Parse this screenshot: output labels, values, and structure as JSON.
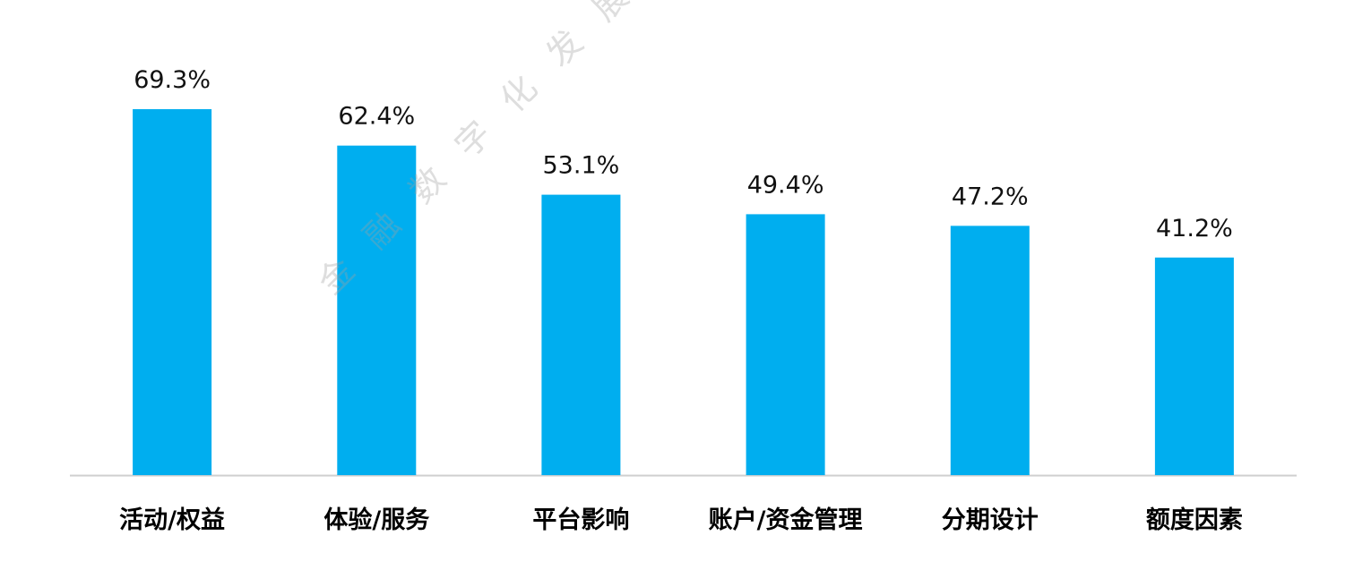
{
  "chart_data": {
    "type": "bar",
    "categories": [
      "活动/权益",
      "体验/服务",
      "平台影响",
      "账户/资金管理",
      "分期设计",
      "额度因素"
    ],
    "values": [
      69.3,
      62.4,
      53.1,
      49.4,
      47.2,
      41.2
    ],
    "value_labels": [
      "69.3%",
      "62.4%",
      "53.1%",
      "49.4%",
      "47.2%",
      "41.2%"
    ],
    "ylim": [
      0,
      69.3
    ],
    "bar_color": "#00AEEF",
    "axis_color": "#CFCFCF",
    "grid": false,
    "legend": "none",
    "watermark": "金融数字化发展联盟"
  }
}
